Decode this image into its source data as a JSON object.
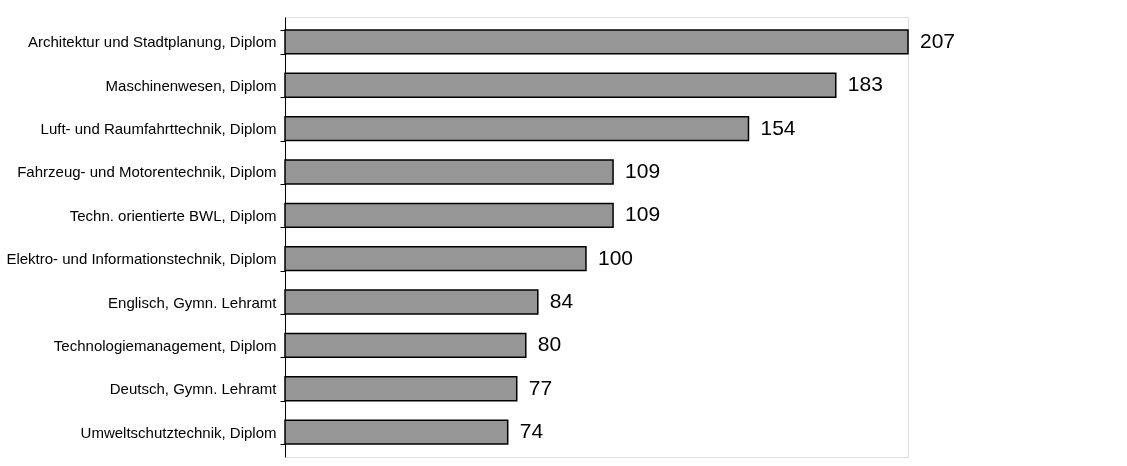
{
  "chart_data": {
    "type": "bar",
    "orientation": "horizontal",
    "data_labels": true,
    "grid": false,
    "tick_labels": "y",
    "categories": [
      "Architektur und Stadtplanung, Diplom",
      "Maschinenwesen, Diplom",
      "Luft- und Raumfahrttechnik, Diplom",
      "Fahrzeug- und Motorentechnik, Diplom",
      "Techn. orientierte BWL, Diplom",
      "Elektro- und Informationstechnik, Diplom",
      "Englisch, Gymn. Lehramt",
      "Technologiemanagement, Diplom",
      "Deutsch, Gymn. Lehramt",
      "Umweltschutztechnik, Diplom"
    ],
    "values": [
      207,
      183,
      154,
      109,
      109,
      100,
      84,
      80,
      77,
      74
    ],
    "color": "#969696"
  }
}
